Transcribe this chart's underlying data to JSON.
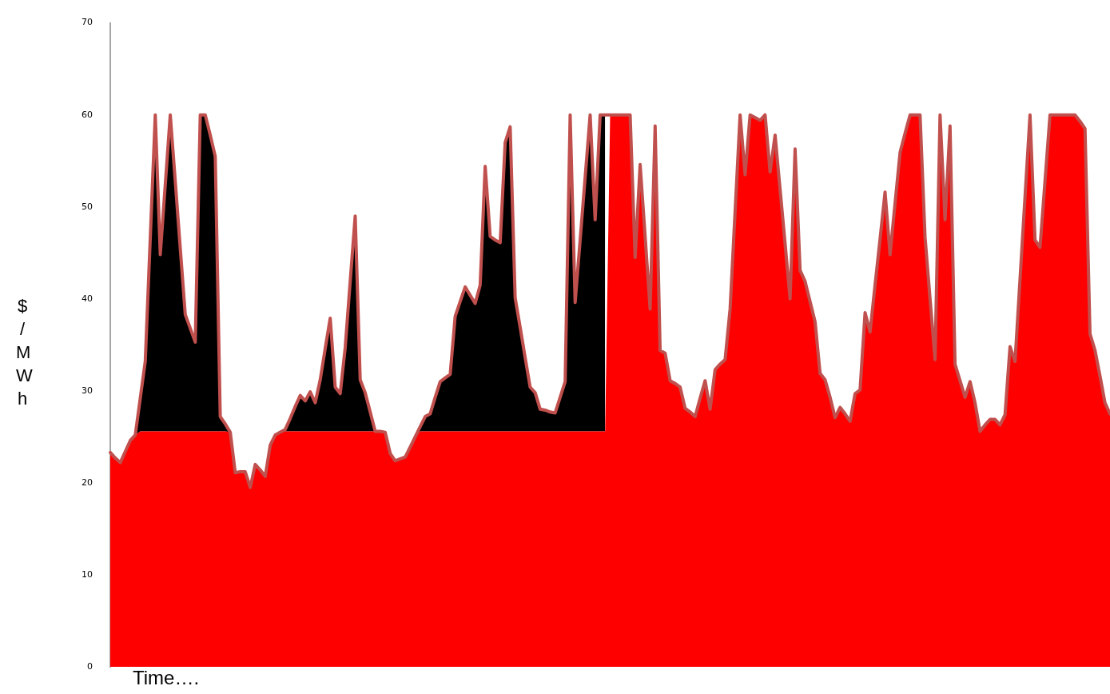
{
  "chart_data": {
    "type": "area",
    "stacked": true,
    "xlabel": "Time….",
    "ylabel": "$/MWh",
    "ylim": [
      0,
      70
    ],
    "yticks": [
      0,
      10,
      20,
      30,
      40,
      50,
      60,
      70
    ],
    "grid": false,
    "legend": false,
    "tick_labels": "y",
    "marker": "none",
    "categories": [
      null,
      null,
      null,
      null,
      null,
      null,
      null,
      null,
      null,
      null,
      null,
      null,
      null,
      null,
      null,
      null,
      null,
      null,
      null,
      null,
      null,
      null,
      null,
      null,
      null,
      null,
      null,
      null,
      null,
      null,
      null,
      null,
      null,
      null,
      null,
      null,
      null,
      null,
      null,
      null,
      null,
      null,
      null,
      null,
      null,
      null,
      null,
      null,
      null,
      null,
      null,
      null,
      null,
      null,
      null,
      null,
      null,
      null,
      null,
      null,
      null,
      null,
      null,
      null,
      null,
      null,
      null,
      null,
      null,
      null,
      null,
      null,
      null,
      null,
      null,
      null,
      null,
      null,
      null,
      null,
      null,
      null,
      null,
      null,
      null,
      null,
      null,
      null,
      null,
      null,
      null,
      null,
      null,
      null,
      null,
      null,
      null,
      null,
      null,
      null,
      null,
      null,
      null,
      null,
      null,
      null,
      null,
      null,
      null,
      null,
      null,
      null,
      null,
      null,
      null,
      null,
      null,
      null,
      null,
      null,
      null,
      null,
      null,
      null,
      null,
      null,
      null,
      null,
      null,
      null,
      null,
      null,
      null,
      null,
      null,
      null,
      null,
      null,
      null,
      null,
      null,
      null,
      null,
      null,
      null,
      null,
      null,
      null,
      null,
      null,
      null,
      null,
      null,
      null,
      null,
      null,
      null,
      null,
      null,
      null,
      null,
      null,
      null,
      null,
      null,
      null,
      null,
      null,
      null,
      null,
      null,
      null,
      null,
      null,
      null,
      null,
      null,
      null,
      null,
      null,
      null,
      null,
      null,
      null,
      null,
      null,
      null,
      null,
      null,
      null,
      null,
      null,
      null,
      null,
      null,
      null,
      null,
      null,
      null,
      null,
      null
    ],
    "series": [
      {
        "color": "#ff0000",
        "values": [
          23.3,
          22.7,
          22.2,
          23.4,
          24.6,
          25.2,
          25.6,
          25.6,
          25.6,
          25.6,
          25.6,
          25.6,
          25.6,
          25.6,
          25.6,
          25.6,
          25.6,
          25.6,
          25.6,
          25.6,
          25.6,
          25.6,
          25.6,
          25.6,
          25.5,
          21.1,
          21.2,
          21.2,
          19.5,
          22.0,
          21.4,
          20.7,
          24.1,
          25.2,
          25.5,
          25.6,
          25.6,
          25.6,
          25.6,
          25.6,
          25.6,
          25.6,
          25.6,
          25.6,
          25.6,
          25.6,
          25.6,
          25.6,
          25.6,
          25.6,
          25.6,
          25.6,
          25.6,
          25.6,
          25.6,
          25.5,
          23.2,
          22.4,
          22.6,
          22.8,
          23.9,
          25.0,
          25.6,
          25.6,
          25.6,
          25.6,
          25.6,
          25.6,
          25.6,
          25.6,
          25.6,
          25.6,
          25.6,
          25.6,
          25.6,
          25.6,
          25.6,
          25.6,
          25.6,
          25.6,
          25.6,
          25.6,
          25.6,
          25.6,
          25.6,
          25.6,
          25.6,
          25.6,
          25.6,
          25.6,
          25.6,
          25.6,
          25.6,
          25.6,
          25.6,
          25.6,
          25.6,
          25.6,
          25.6,
          25.6,
          60,
          60,
          60,
          60,
          60,
          44.5,
          54.6,
          46.8,
          38.9,
          58.8,
          34.4,
          34.1,
          31.1,
          30.8,
          30.4,
          28.1,
          27.7,
          27.2,
          29.2,
          31.1,
          28.0,
          32.3,
          32.9,
          33.4,
          38.9,
          49.5,
          60,
          53.5,
          60,
          59.7,
          59.4,
          60,
          53.8,
          57.8,
          51.9,
          46.0,
          40.0,
          56.3,
          43.1,
          41.9,
          39.7,
          37.5,
          31.9,
          31.2,
          29.3,
          27.1,
          28.2,
          27.5,
          26.7,
          29.7,
          30.1,
          38.5,
          36.4,
          41.5,
          46.5,
          51.6,
          44.8,
          50.4,
          55.9,
          58.0,
          60,
          60,
          60,
          46.7,
          40.0,
          33.4,
          60,
          48.6,
          58.8,
          32.9,
          31.1,
          29.3,
          31.0,
          28.7,
          25.6,
          26.3,
          26.9,
          26.9,
          26.3,
          27.4,
          34.8,
          33.2,
          42.1,
          51.1,
          60,
          46.4,
          45.6,
          52.8,
          60,
          60,
          60,
          60,
          60,
          60,
          59.3,
          58.5,
          36.2,
          34.4,
          31.6,
          28.7,
          27.5
        ]
      },
      {
        "color": "#000000",
        "values": [
          0,
          0,
          0,
          0,
          0,
          0,
          3.6,
          7.6,
          21.0,
          34.4,
          19.2,
          26.8,
          34.4,
          27.2,
          19.9,
          12.7,
          11.2,
          9.7,
          34.4,
          34.4,
          32.2,
          29.9,
          1.6,
          0.8,
          0,
          0,
          0,
          0,
          0,
          0,
          0,
          0,
          0,
          0,
          0,
          0.2,
          1.4,
          2.7,
          3.9,
          3.3,
          4.3,
          3.1,
          5.6,
          9.0,
          12.3,
          4.8,
          4.1,
          9.1,
          16.3,
          23.4,
          5.6,
          4.2,
          2.1,
          0,
          0,
          0,
          0,
          0,
          0,
          0,
          0,
          0,
          0.5,
          1.6,
          1.9,
          3.7,
          5.4,
          5.8,
          6.2,
          12.5,
          14.1,
          15.7,
          14.8,
          13.9,
          15.9,
          28.8,
          21.2,
          20.8,
          20.5,
          31.4,
          33.1,
          14.5,
          11.3,
          8.0,
          4.8,
          4.2,
          2.4,
          2.3,
          2.1,
          2.0,
          3.7,
          5.4,
          34.4,
          14.0,
          20.8,
          27.6,
          34.4,
          23.0,
          34.4,
          34.4,
          null,
          null,
          null,
          null,
          null,
          null,
          null,
          null,
          null,
          null,
          null,
          null,
          null,
          null,
          null,
          null,
          null,
          null,
          null,
          null,
          null,
          null,
          null,
          null,
          null,
          null,
          null,
          null,
          null,
          null,
          null,
          null,
          null,
          null,
          null,
          null,
          null,
          null,
          null,
          null,
          null,
          null,
          null,
          null,
          null,
          null,
          null,
          null,
          null,
          null,
          null,
          null,
          null,
          null,
          null,
          null,
          null,
          null,
          null,
          null,
          null,
          null,
          null,
          null,
          null,
          null,
          null,
          null,
          null,
          null,
          null,
          null,
          null,
          null,
          null,
          null,
          null,
          null,
          null,
          null,
          null,
          null,
          null,
          null,
          null,
          null,
          null,
          null,
          null,
          null,
          null,
          null,
          null,
          null,
          null,
          null,
          null,
          null,
          null,
          null,
          null
        ]
      },
      {
        "type": "line",
        "color": "#c0504d",
        "values": [
          23.3,
          22.7,
          22.2,
          23.4,
          24.6,
          25.2,
          29.2,
          33.2,
          46.6,
          60,
          44.8,
          52.4,
          60,
          52.8,
          45.5,
          38.3,
          36.8,
          35.3,
          60,
          60,
          57.8,
          55.5,
          27.2,
          26.4,
          25.5,
          21.1,
          21.2,
          21.2,
          19.5,
          22.0,
          21.4,
          20.7,
          24.1,
          25.2,
          25.5,
          25.8,
          27.0,
          28.3,
          29.5,
          28.9,
          29.9,
          28.7,
          31.2,
          34.6,
          37.9,
          30.4,
          29.7,
          34.7,
          41.9,
          49.0,
          31.2,
          29.8,
          27.7,
          25.6,
          25.6,
          25.5,
          23.2,
          22.4,
          22.6,
          22.8,
          23.9,
          25.0,
          26.1,
          27.2,
          27.5,
          29.3,
          31.0,
          31.4,
          31.8,
          38.1,
          39.7,
          41.3,
          40.4,
          39.5,
          41.5,
          54.4,
          46.8,
          46.4,
          46.1,
          57.0,
          58.7,
          40.1,
          36.9,
          33.6,
          30.4,
          29.8,
          28.0,
          27.9,
          27.7,
          27.6,
          29.3,
          31.0,
          60,
          39.6,
          46.4,
          53.2,
          60,
          48.6,
          60,
          60,
          60,
          60,
          60,
          60,
          60,
          44.5,
          54.6,
          46.8,
          38.9,
          58.8,
          34.4,
          34.1,
          31.1,
          30.8,
          30.4,
          28.1,
          27.7,
          27.2,
          29.2,
          31.1,
          28.0,
          32.3,
          32.9,
          33.4,
          38.9,
          49.5,
          60,
          53.5,
          60,
          59.7,
          59.4,
          60,
          53.8,
          57.8,
          51.9,
          46.0,
          40.0,
          56.3,
          43.1,
          41.9,
          39.7,
          37.5,
          31.9,
          31.2,
          29.3,
          27.1,
          28.2,
          27.5,
          26.7,
          29.7,
          30.1,
          38.5,
          36.4,
          41.5,
          46.5,
          51.6,
          44.8,
          50.4,
          55.9,
          58.0,
          60,
          60,
          60,
          46.7,
          40.0,
          33.4,
          60,
          48.6,
          58.8,
          32.9,
          31.1,
          29.3,
          31.0,
          28.7,
          25.6,
          26.3,
          26.9,
          26.9,
          26.3,
          27.4,
          34.8,
          33.2,
          42.1,
          51.1,
          60,
          46.4,
          45.6,
          52.8,
          60,
          60,
          60,
          60,
          60,
          60,
          59.3,
          58.5,
          36.2,
          34.4,
          31.6,
          28.7,
          27.5
        ]
      }
    ]
  }
}
